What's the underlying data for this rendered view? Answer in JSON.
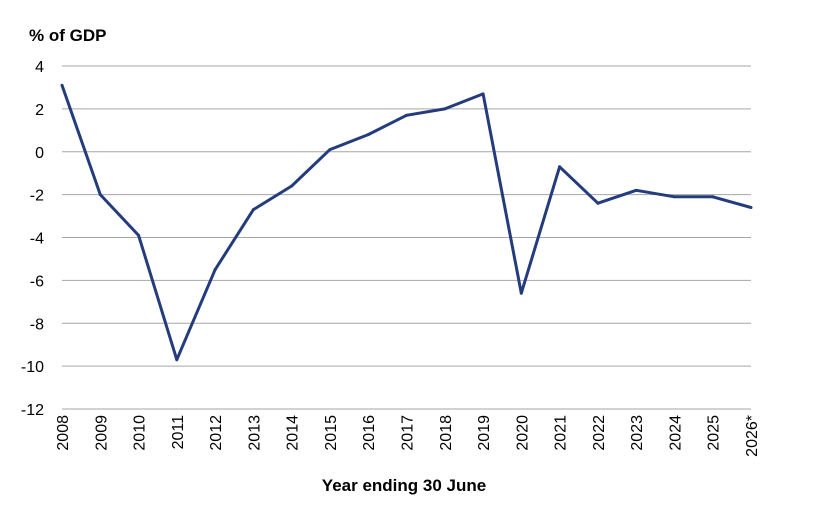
{
  "chart_data": {
    "type": "line",
    "title": "",
    "ylabel": "% of GDP",
    "xlabel": "Year ending 30 June",
    "ylim": [
      -12,
      4
    ],
    "yticks": [
      4,
      2,
      0,
      -2,
      -4,
      -6,
      -8,
      -10,
      -12
    ],
    "grid": true,
    "categories": [
      "2008",
      "2009",
      "2010",
      "2011",
      "2012",
      "2013",
      "2014",
      "2015",
      "2016",
      "2017",
      "2018",
      "2019",
      "2020",
      "2021",
      "2022",
      "2023",
      "2024",
      "2025",
      "2026*"
    ],
    "series": [
      {
        "color": "#243c7c",
        "values": [
          3.1,
          -2.0,
          -3.9,
          -9.7,
          -5.5,
          -2.7,
          -1.6,
          0.1,
          0.8,
          1.7,
          2.0,
          2.7,
          -6.6,
          -0.7,
          -2.4,
          -1.8,
          -2.1,
          -2.1,
          -2.6
        ]
      }
    ]
  }
}
